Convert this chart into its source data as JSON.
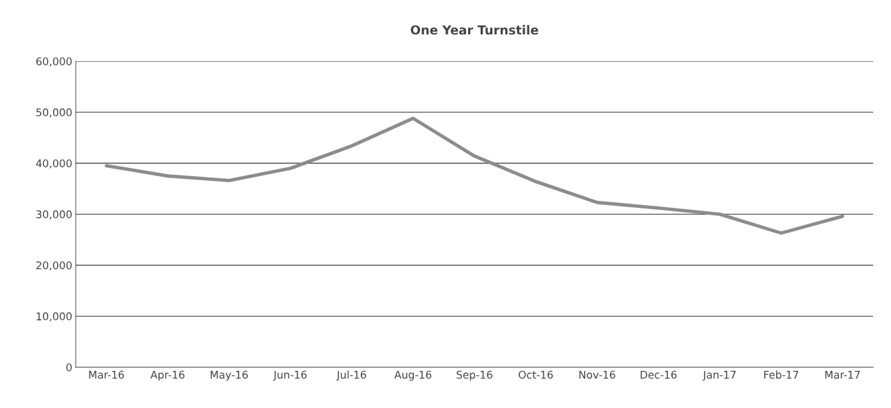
{
  "chart_data": {
    "type": "line",
    "title": "One Year Turnstile",
    "categories": [
      "Mar-16",
      "Apr-16",
      "May-16",
      "Jun-16",
      "Jul-16",
      "Aug-16",
      "Sep-16",
      "Oct-16",
      "Nov-16",
      "Dec-16",
      "Jan-17",
      "Feb-17",
      "Mar-17"
    ],
    "series": [
      {
        "color": "#8c8c8c",
        "values": [
          39500,
          37500,
          36600,
          39000,
          43400,
          48800,
          41400,
          36400,
          32300,
          31200,
          30000,
          26300,
          29600
        ]
      }
    ],
    "ylim": [
      0,
      60000
    ],
    "yticks": [
      {
        "value": 0,
        "label": "0"
      },
      {
        "value": 10000,
        "label": "10,000"
      },
      {
        "value": 20000,
        "label": "20,000"
      },
      {
        "value": 30000,
        "label": "30,000"
      },
      {
        "value": 40000,
        "label": "40,000"
      },
      {
        "value": 50000,
        "label": "50,000"
      },
      {
        "value": 60000,
        "label": "60,000"
      }
    ],
    "grid": "y",
    "legend": false,
    "marker": "none",
    "line_style": "solid"
  }
}
